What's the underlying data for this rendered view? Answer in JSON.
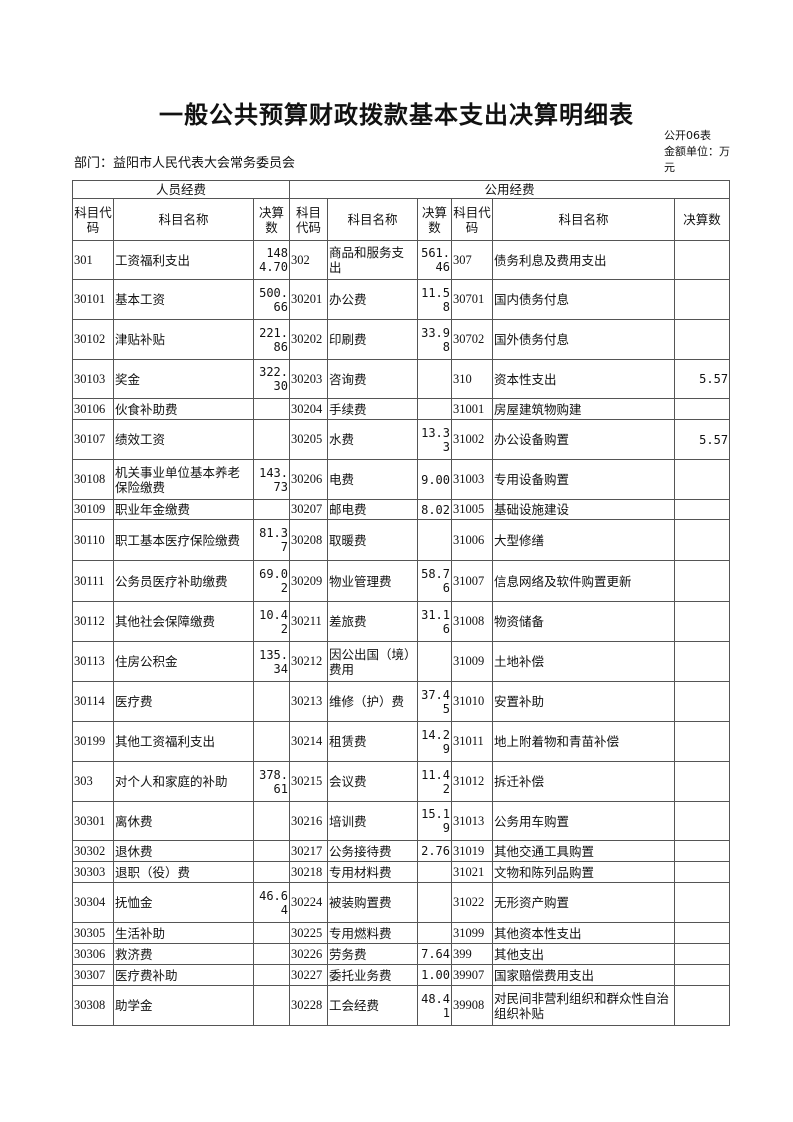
{
  "title": "一般公共预算财政拨款基本支出决算明细表",
  "form_no": "公开06表",
  "unit": "金额单位：万元",
  "department": "部门：益阳市人民代表大会常务委员会",
  "groups": [
    "人员经费",
    "公用经费"
  ],
  "headers": [
    "科目代码",
    "科目名称",
    "决算数",
    "科目代码",
    "科目名称",
    "决算数",
    "科目代码",
    "科目名称",
    "决算数"
  ],
  "rows": [
    [
      "301",
      "工资福利支出",
      "1484.70",
      "302",
      "商品和服务支出",
      "561.46",
      "307",
      "债务利息及费用支出",
      ""
    ],
    [
      "30101",
      "基本工资",
      "500.66",
      "30201",
      "办公费",
      "11.58",
      "30701",
      "国内债务付息",
      ""
    ],
    [
      "30102",
      "津贴补贴",
      "221.86",
      "30202",
      "印刷费",
      "33.98",
      "30702",
      "国外债务付息",
      ""
    ],
    [
      "30103",
      "奖金",
      "322.30",
      "30203",
      "咨询费",
      "",
      "310",
      "资本性支出",
      "5.57"
    ],
    [
      "30106",
      "伙食补助费",
      "",
      "30204",
      "手续费",
      "",
      "31001",
      "房屋建筑物购建",
      ""
    ],
    [
      "30107",
      "绩效工资",
      "",
      "30205",
      "水费",
      "13.33",
      "31002",
      "办公设备购置",
      "5.57"
    ],
    [
      "30108",
      "机关事业单位基本养老保险缴费",
      "143.73",
      "30206",
      "电费",
      "9.00",
      "31003",
      "专用设备购置",
      ""
    ],
    [
      "30109",
      "职业年金缴费",
      "",
      "30207",
      "邮电费",
      "8.02",
      "31005",
      "基础设施建设",
      ""
    ],
    [
      "30110",
      "职工基本医疗保险缴费",
      "81.37",
      "30208",
      "取暖费",
      "",
      "31006",
      "大型修缮",
      ""
    ],
    [
      "30111",
      "公务员医疗补助缴费",
      "69.02",
      "30209",
      "物业管理费",
      "58.76",
      "31007",
      "信息网络及软件购置更新",
      ""
    ],
    [
      "30112",
      "其他社会保障缴费",
      "10.42",
      "30211",
      "差旅费",
      "31.16",
      "31008",
      "物资储备",
      ""
    ],
    [
      "30113",
      "住房公积金",
      "135.34",
      "30212",
      "因公出国（境）费用",
      "",
      "31009",
      "土地补偿",
      ""
    ],
    [
      "30114",
      "医疗费",
      "",
      "30213",
      "维修（护）费",
      "37.45",
      "31010",
      "安置补助",
      ""
    ],
    [
      "30199",
      "其他工资福利支出",
      "",
      "30214",
      "租赁费",
      "14.29",
      "31011",
      "地上附着物和青苗补偿",
      ""
    ],
    [
      "303",
      "对个人和家庭的补助",
      "378.61",
      "30215",
      "会议费",
      "11.42",
      "31012",
      "拆迁补偿",
      ""
    ],
    [
      "30301",
      "离休费",
      "",
      "30216",
      "培训费",
      "15.19",
      "31013",
      "公务用车购置",
      ""
    ],
    [
      "30302",
      "退休费",
      "",
      "30217",
      "公务接待费",
      "2.76",
      "31019",
      "其他交通工具购置",
      ""
    ],
    [
      "30303",
      "退职（役）费",
      "",
      "30218",
      "专用材料费",
      "",
      "31021",
      "文物和陈列品购置",
      ""
    ],
    [
      "30304",
      "抚恤金",
      "46.64",
      "30224",
      "被装购置费",
      "",
      "31022",
      "无形资产购置",
      ""
    ],
    [
      "30305",
      "生活补助",
      "",
      "30225",
      "专用燃料费",
      "",
      "31099",
      "其他资本性支出",
      ""
    ],
    [
      "30306",
      "救济费",
      "",
      "30226",
      "劳务费",
      "7.64",
      "399",
      "其他支出",
      ""
    ],
    [
      "30307",
      "医疗费补助",
      "",
      "30227",
      "委托业务费",
      "1.00",
      "39907",
      "国家赔偿费用支出",
      ""
    ],
    [
      "30308",
      "助学金",
      "",
      "30228",
      "工会经费",
      "48.41",
      "39908",
      "对民间非营利组织和群众性自治组织补贴",
      ""
    ]
  ]
}
